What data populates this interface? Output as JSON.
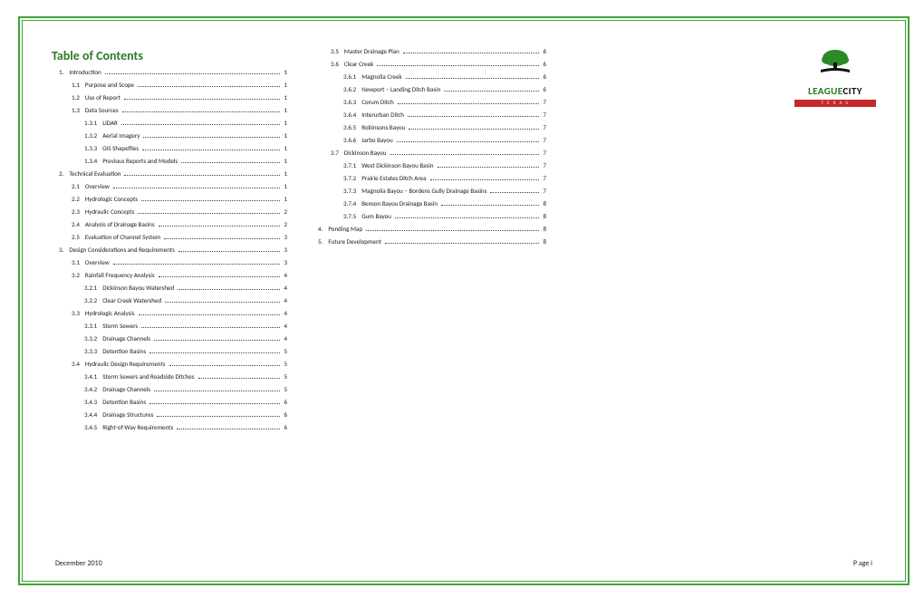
{
  "title": "Table of Contents",
  "colors": {
    "border": "#3fa535",
    "title": "#2b7a2b",
    "logo_green": "#247b20",
    "logo_banner": "#c62828"
  },
  "left_col": [
    {
      "indent": 1,
      "num": "1.",
      "label": "Introduction",
      "page": "1"
    },
    {
      "indent": 2,
      "num": "1.1",
      "label": "Purpose and Scope",
      "page": "1"
    },
    {
      "indent": 2,
      "num": "1.2",
      "label": "Use of Report",
      "page": "1"
    },
    {
      "indent": 2,
      "num": "1.3",
      "label": "Data Sources",
      "page": "1"
    },
    {
      "indent": 3,
      "num": "1.3.1",
      "label": "LiDAR",
      "page": "1"
    },
    {
      "indent": 3,
      "num": "1.3.2",
      "label": "Aerial Imagery",
      "page": "1"
    },
    {
      "indent": 3,
      "num": "1.3.3",
      "label": "GIS Shapefiles",
      "page": "1"
    },
    {
      "indent": 3,
      "num": "1.3.4",
      "label": "Previous Reports and Models",
      "page": "1"
    },
    {
      "indent": 1,
      "num": "2.",
      "label": "Technical Evaluation",
      "page": "1"
    },
    {
      "indent": 2,
      "num": "2.1",
      "label": "Overview",
      "page": "1"
    },
    {
      "indent": 2,
      "num": "2.2",
      "label": "Hydrologic Concepts",
      "page": "1"
    },
    {
      "indent": 2,
      "num": "2.3",
      "label": "Hydraulic Concepts",
      "page": "2"
    },
    {
      "indent": 2,
      "num": "2.4",
      "label": "Analysis of Drainage Basins",
      "page": "2"
    },
    {
      "indent": 2,
      "num": "2.5",
      "label": "Evaluation of Channel System",
      "page": "3"
    },
    {
      "indent": 1,
      "num": "3.",
      "label": "Design Considerations and Requirements",
      "page": "3"
    },
    {
      "indent": 2,
      "num": "3.1",
      "label": "Overview",
      "page": "3"
    },
    {
      "indent": 2,
      "num": "3.2",
      "label": "Rainfall Frequency Analysis",
      "page": "4"
    },
    {
      "indent": 3,
      "num": "3.2.1",
      "label": "Dickinson Bayou Watershed",
      "page": "4"
    },
    {
      "indent": 3,
      "num": "3.2.2",
      "label": "Clear Creek Watershed",
      "page": "4"
    },
    {
      "indent": 2,
      "num": "3.3",
      "label": "Hydrologic Analysis",
      "page": "4"
    },
    {
      "indent": 3,
      "num": "3.3.1",
      "label": "Storm Sewers",
      "page": "4"
    },
    {
      "indent": 3,
      "num": "3.3.2",
      "label": "Drainage Channels",
      "page": "4"
    },
    {
      "indent": 3,
      "num": "3.3.3",
      "label": "Detention Basins",
      "page": "5"
    },
    {
      "indent": 2,
      "num": "3.4",
      "label": "Hydraulic Design Requirements",
      "page": "5"
    },
    {
      "indent": 3,
      "num": "3.4.1",
      "label": "Storm Sewers and Roadside Ditches",
      "page": "5"
    },
    {
      "indent": 3,
      "num": "3.4.2",
      "label": "Drainage Channels",
      "page": "5"
    },
    {
      "indent": 3,
      "num": "3.4.3",
      "label": "Detention Basins",
      "page": "6"
    },
    {
      "indent": 3,
      "num": "3.4.4",
      "label": "Drainage Structures",
      "page": "6"
    },
    {
      "indent": 3,
      "num": "3.4.5",
      "label": "Right-of-Way Requirements",
      "page": "6"
    }
  ],
  "right_col": [
    {
      "indent": 2,
      "num": "3.5",
      "label": "Master Drainage Plan",
      "page": "6"
    },
    {
      "indent": 2,
      "num": "3.6",
      "label": "Clear Creek",
      "page": "6"
    },
    {
      "indent": 3,
      "num": "3.6.1",
      "label": "Magnolia Creek",
      "page": "6"
    },
    {
      "indent": 3,
      "num": "3.6.2",
      "label": "Newport – Landing Ditch Basin",
      "page": "6"
    },
    {
      "indent": 3,
      "num": "3.6.3",
      "label": "Corum Ditch",
      "page": "7"
    },
    {
      "indent": 3,
      "num": "3.6.4",
      "label": "Interurban Ditch",
      "page": "7"
    },
    {
      "indent": 3,
      "num": "3.6.5",
      "label": "Robinsons Bayou",
      "page": "7"
    },
    {
      "indent": 3,
      "num": "3.6.6",
      "label": "Jarbo Bayou",
      "page": "7"
    },
    {
      "indent": 2,
      "num": "3.7",
      "label": "Dickinson Bayou",
      "page": "7"
    },
    {
      "indent": 3,
      "num": "3.7.1",
      "label": "West Dickinson Bayou Basin",
      "page": "7"
    },
    {
      "indent": 3,
      "num": "3.7.2",
      "label": "Prairie Estates Ditch Area",
      "page": "7"
    },
    {
      "indent": 3,
      "num": "3.7.3",
      "label": "Magnolia Bayou – Bordens Gully Drainage Basins",
      "page": "7"
    },
    {
      "indent": 3,
      "num": "3.7.4",
      "label": "Benson Bayou Drainage Basin",
      "page": "8"
    },
    {
      "indent": 3,
      "num": "3.7.5",
      "label": "Gum Bayou",
      "page": "8"
    },
    {
      "indent": 1,
      "num": "4.",
      "label": "Ponding Map",
      "page": "8"
    },
    {
      "indent": 1,
      "num": "5.",
      "label": "Future Development",
      "page": "8"
    }
  ],
  "footer": {
    "left": "December 2010",
    "right": "P age i"
  },
  "logo": {
    "word1": "LEAGUE",
    "word2": "CITY",
    "banner": "T  E  X  A  S"
  }
}
